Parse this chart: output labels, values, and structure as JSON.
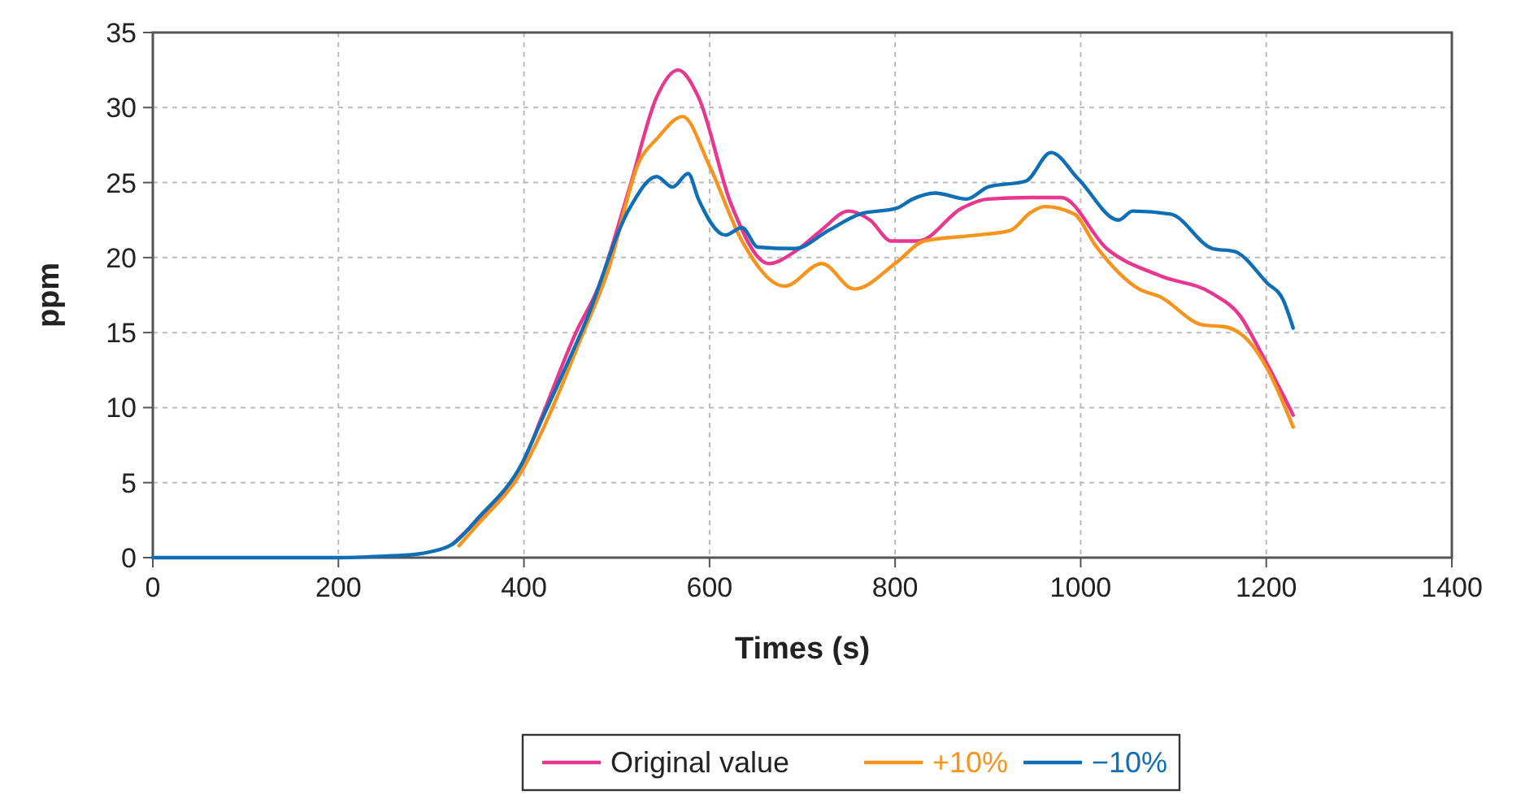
{
  "chart_data": {
    "type": "line",
    "xlabel": "Times (s)",
    "ylabel": "ppm",
    "xlim": [
      0,
      1400
    ],
    "xticks": [
      0,
      200,
      400,
      600,
      800,
      1000,
      1200,
      1400
    ],
    "ylim": [
      0,
      35
    ],
    "yticks": [
      0,
      5,
      10,
      15,
      20,
      25,
      30,
      35
    ],
    "grid": true,
    "legend": "bottom",
    "marker": "none",
    "line_style": "solid",
    "series": [
      {
        "name": "Original value",
        "color": "#e8378f",
        "x": [
          323,
          350,
          398,
          420,
          456,
          480,
          514,
          543,
          566,
          588,
          623,
          664,
          692,
          720,
          750,
          773,
          796,
          825,
          872,
          900,
          946,
          979,
          1028,
          1085,
          1142,
          1172,
          1194,
          1229
        ],
        "values": [
          0.9,
          2.5,
          6.2,
          9.5,
          15,
          18,
          24.7,
          30.7,
          32.5,
          30.7,
          23.6,
          19.6,
          20.4,
          21.8,
          23.1,
          22.5,
          21.1,
          21.1,
          23.3,
          23.9,
          24,
          24,
          20.6,
          18.8,
          17.6,
          16.1,
          13.7,
          9.5
        ]
      },
      {
        "name": "+10%",
        "color": "#f7941d",
        "x": [
          330,
          350,
          398,
          420,
          462,
          490,
          525,
          543,
          571,
          600,
          635,
          681,
          721,
          756,
          802,
          831,
          889,
          924,
          946,
          961,
          993,
          1016,
          1063,
          1085,
          1132,
          1154,
          1183,
          1201,
          1229
        ],
        "values": [
          0.8,
          2.2,
          5.8,
          8.5,
          14.7,
          19,
          26.5,
          27.9,
          29.4,
          26.1,
          21.1,
          18.1,
          19.6,
          17.9,
          19.7,
          21.1,
          21.5,
          21.8,
          23,
          23.4,
          22.9,
          20.8,
          17.9,
          17.4,
          15.5,
          15.4,
          14.3,
          12.6,
          8.7
        ]
      },
      {
        "name": "−10%",
        "color": "#0f6fb5",
        "x": [
          0,
          100,
          200,
          250,
          280,
          300,
          323,
          350,
          398,
          420,
          467,
          514,
          543,
          560,
          577,
          588,
          617,
          635,
          652,
          692,
          728,
          762,
          802,
          819,
          843,
          877,
          900,
          941,
          968,
          998,
          1041,
          1056,
          1097,
          1142,
          1166,
          1201,
          1218,
          1229
        ],
        "values": [
          0,
          0,
          0,
          0.1,
          0.2,
          0.4,
          0.9,
          2.6,
          6.3,
          9.3,
          15.8,
          23.3,
          25.4,
          24.7,
          25.6,
          23.9,
          21.5,
          22,
          20.7,
          20.6,
          21.8,
          22.9,
          23.3,
          23.9,
          24.3,
          23.9,
          24.7,
          25.1,
          27,
          25.2,
          22.5,
          23.1,
          22.9,
          20.6,
          20.4,
          18.3,
          17.2,
          15.3
        ]
      }
    ]
  }
}
